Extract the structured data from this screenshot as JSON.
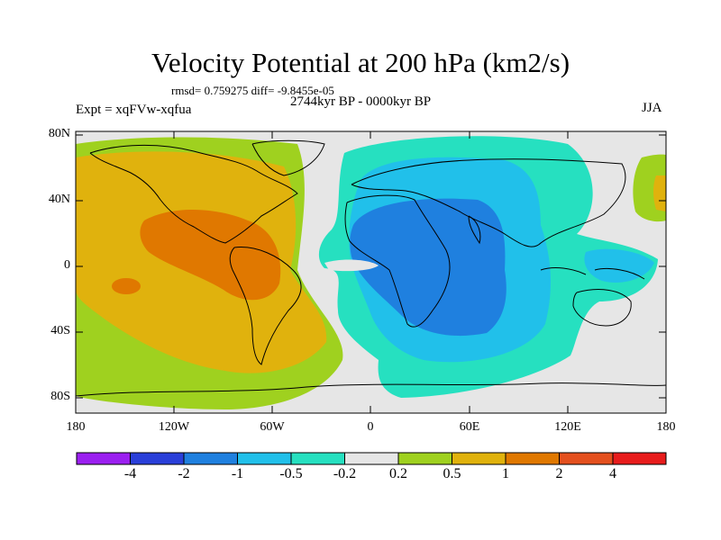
{
  "title": "Velocity Potential at 200 hPa (km2/s)",
  "stats": "rmsd= 0.759275 diff= -9.8455e-05",
  "period": "2744kyr BP - 0000kyr BP",
  "expt": "Expt = xqFVw-xqfua",
  "season": "JJA",
  "lat_labels": [
    "80N",
    "40N",
    "0",
    "40S",
    "80S"
  ],
  "lon_labels": [
    "180",
    "120W",
    "60W",
    "0",
    "60E",
    "120E",
    "180"
  ],
  "colorbar": {
    "colors": [
      "#9b1ff0",
      "#2a3fd9",
      "#1f80df",
      "#21c0ea",
      "#26e0c0",
      "#e6e6e6",
      "#9fd11f",
      "#e0b20d",
      "#e07800",
      "#e4501e",
      "#e81c1c"
    ],
    "labels": [
      "-4",
      "-2",
      "-1",
      "-0.5",
      "-0.2",
      "0.2",
      "0.5",
      "1",
      "2",
      "4"
    ]
  },
  "field_colors": {
    "neutral": "#e6e6e6",
    "pos_low": "#9fd11f",
    "pos_mid": "#e0b20d",
    "pos_high": "#e07800",
    "neg_low": "#26e0c0",
    "neg_mid": "#21c0ea",
    "neg_high": "#1f80df"
  }
}
